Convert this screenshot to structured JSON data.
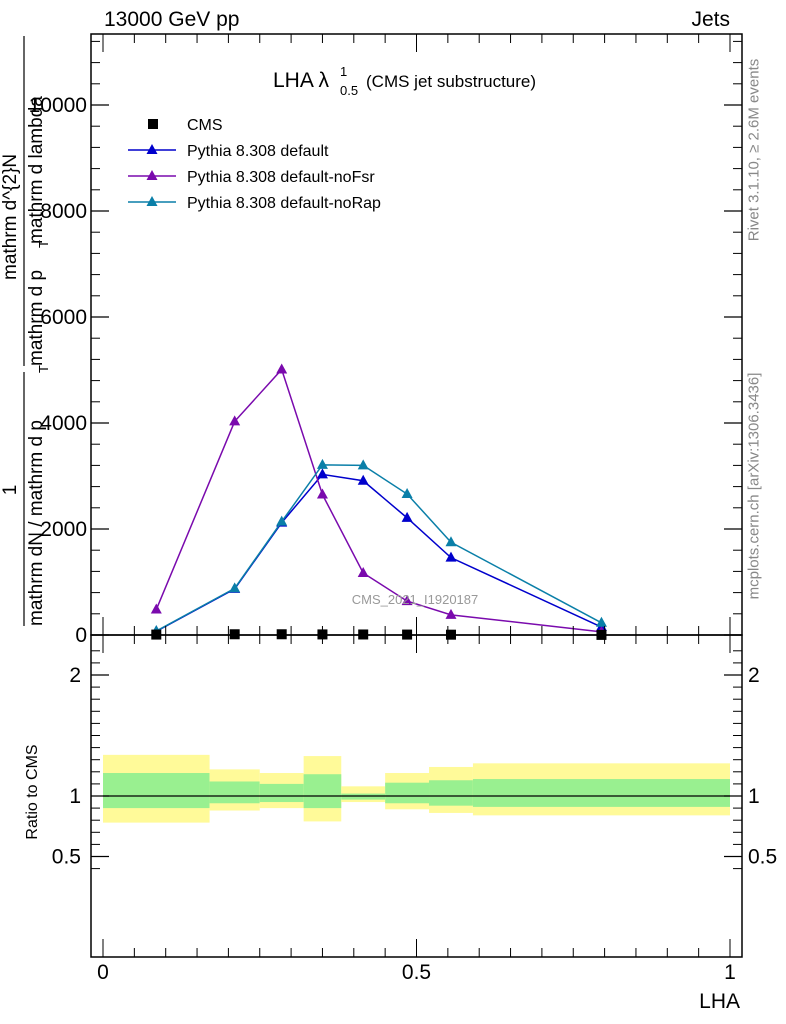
{
  "header": {
    "energy_label": "13000 GeV pp",
    "category_label": "Jets"
  },
  "side_labels": {
    "rivet": "Rivet 3.1.10, ≥ 2.6M events",
    "mcplots": "mcplots.cern.ch [arXiv:1306.3436]"
  },
  "chart_data": {
    "type": "line",
    "title_main": "LHA λ",
    "title_sup": "1",
    "title_sub": "0.5",
    "title_suffix": "(CMS jet substructure)",
    "watermark": "CMS_2021_I1920187",
    "ylabel_top": [
      "1",
      "mathrm dN / mathrm d p",
      "T",
      "mathrm d^{2}N",
      "mathrm d p",
      "T",
      "mathrm d lambda"
    ],
    "ratio_ylabel": "Ratio to CMS",
    "xlabel": "LHA",
    "xlim": [
      0,
      1
    ],
    "ylim": [
      0,
      11200
    ],
    "ratio_ylim": [
      0.35,
      2.25
    ],
    "x_ticks": [
      {
        "value": 0,
        "label": "0"
      },
      {
        "value": 0.5,
        "label": "0.5"
      },
      {
        "value": 1,
        "label": "1"
      }
    ],
    "y_ticks": [
      {
        "value": 0,
        "label": "0"
      },
      {
        "value": 2000,
        "label": "2000"
      },
      {
        "value": 4000,
        "label": "4000"
      },
      {
        "value": 6000,
        "label": "6000"
      },
      {
        "value": 8000,
        "label": "8000"
      },
      {
        "value": 10000,
        "label": "10000"
      }
    ],
    "ratio_y_ticks": [
      {
        "value": 0.5,
        "label": "0.5"
      },
      {
        "value": 1,
        "label": "1"
      },
      {
        "value": 2,
        "label": "2"
      }
    ],
    "legend_position": "top-left",
    "data_series": {
      "name": "CMS",
      "color": "#000000",
      "x": [
        0.085,
        0.21,
        0.285,
        0.35,
        0.415,
        0.485,
        0.555,
        0.795
      ],
      "y": [
        8,
        14,
        14,
        11,
        10,
        8,
        6,
        2
      ]
    },
    "series": [
      {
        "name": "Pythia 8.308 default",
        "color": "#0000cc",
        "x": [
          0.085,
          0.21,
          0.285,
          0.35,
          0.415,
          0.485,
          0.555,
          0.795
        ],
        "values": [
          70,
          870,
          2120,
          3030,
          2910,
          2210,
          1460,
          150
        ]
      },
      {
        "name": "Pythia 8.308 default-noFsr",
        "color": "#7a0aad",
        "x": [
          0.085,
          0.21,
          0.285,
          0.35,
          0.415,
          0.485,
          0.555,
          0.795
        ],
        "values": [
          480,
          4030,
          5010,
          2650,
          1170,
          640,
          380,
          60
        ]
      },
      {
        "name": "Pythia 8.308 default-noRap",
        "color": "#0a7fa8",
        "x": [
          0.085,
          0.21,
          0.285,
          0.35,
          0.415,
          0.485,
          0.555,
          0.795
        ],
        "values": [
          75,
          880,
          2140,
          3210,
          3200,
          2660,
          1750,
          230
        ]
      }
    ],
    "ratio_bands": [
      {
        "x0": 0.0,
        "x1": 0.17,
        "inner": [
          0.9,
          1.19
        ],
        "outer": [
          0.78,
          1.34
        ]
      },
      {
        "x0": 0.17,
        "x1": 0.25,
        "inner": [
          0.94,
          1.12
        ],
        "outer": [
          0.88,
          1.22
        ]
      },
      {
        "x0": 0.25,
        "x1": 0.32,
        "inner": [
          0.95,
          1.1
        ],
        "outer": [
          0.9,
          1.19
        ]
      },
      {
        "x0": 0.32,
        "x1": 0.38,
        "inner": [
          0.9,
          1.18
        ],
        "outer": [
          0.79,
          1.33
        ]
      },
      {
        "x0": 0.38,
        "x1": 0.45,
        "inner": [
          0.97,
          1.02
        ],
        "outer": [
          0.95,
          1.08
        ]
      },
      {
        "x0": 0.45,
        "x1": 0.52,
        "inner": [
          0.94,
          1.11
        ],
        "outer": [
          0.89,
          1.19
        ]
      },
      {
        "x0": 0.52,
        "x1": 0.59,
        "inner": [
          0.92,
          1.13
        ],
        "outer": [
          0.86,
          1.24
        ]
      },
      {
        "x0": 0.59,
        "x1": 1.0,
        "inner": [
          0.91,
          1.14
        ],
        "outer": [
          0.84,
          1.27
        ]
      }
    ],
    "band_colors": {
      "inner": "#99f090",
      "outer": "#fffa99"
    }
  }
}
